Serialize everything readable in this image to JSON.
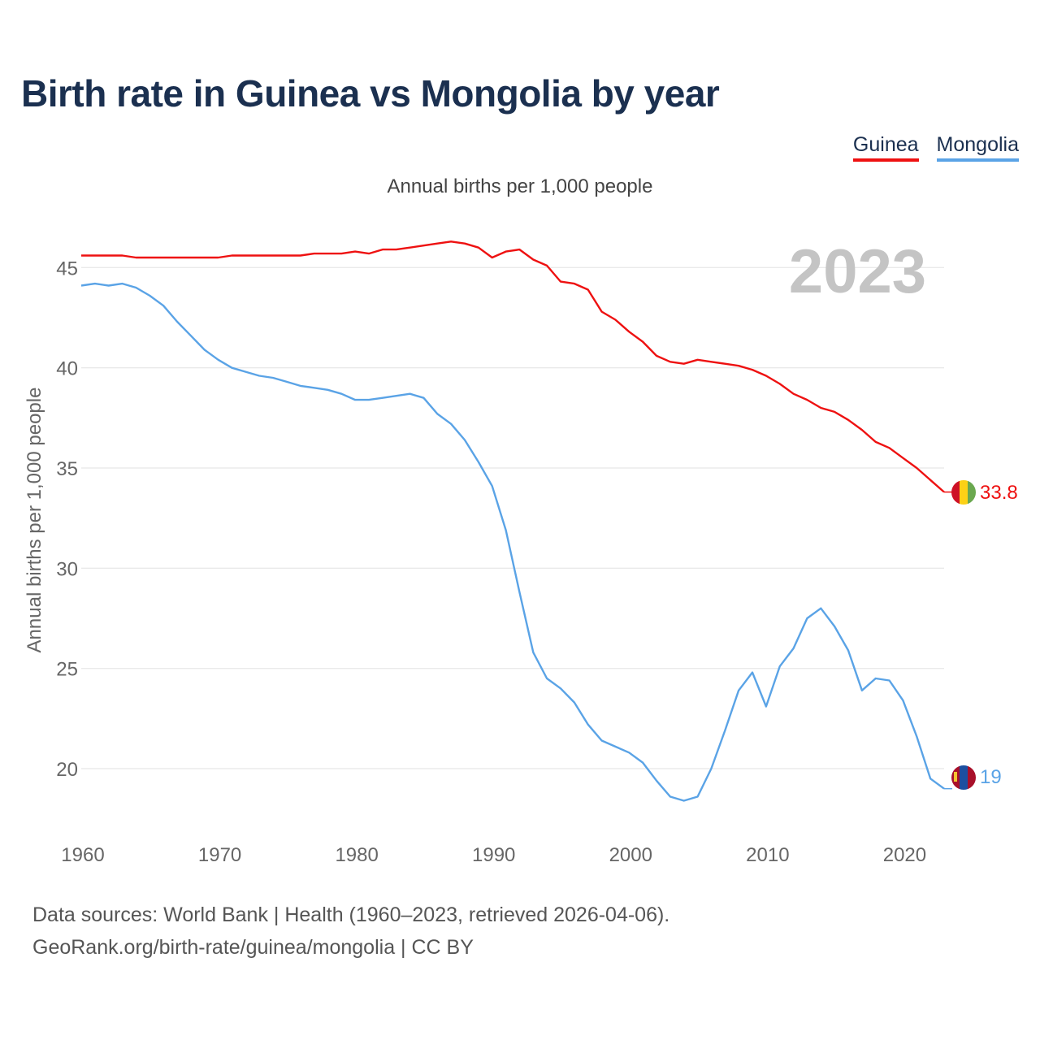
{
  "title": "Birth rate in Guinea vs Mongolia by year",
  "subtitle": "Annual births per 1,000 people",
  "year_watermark": "2023",
  "source_line1": "Data sources: World Bank | Health (1960–2023, retrieved 2026-04-06).",
  "source_line2": "GeoRank.org/birth-rate/guinea/mongolia | CC BY",
  "colors": {
    "guinea": "#ee1111",
    "mongolia": "#5aa3e6",
    "grid": "#e6e6e6",
    "axis_text": "#666666",
    "watermark": "#c4c4c4"
  },
  "chart_data": {
    "type": "line",
    "title": "Birth rate in Guinea vs Mongolia by year",
    "xlabel": "",
    "ylabel": "Annual births per 1,000 people",
    "xlim": [
      1960,
      2023
    ],
    "ylim": [
      17,
      47
    ],
    "x_ticks": [
      1960,
      1970,
      1980,
      1990,
      2000,
      2010,
      2020
    ],
    "y_ticks": [
      20,
      25,
      30,
      35,
      40,
      45
    ],
    "grid": true,
    "legend": "top-right",
    "x": [
      1960,
      1961,
      1962,
      1963,
      1964,
      1965,
      1966,
      1967,
      1968,
      1969,
      1970,
      1971,
      1972,
      1973,
      1974,
      1975,
      1976,
      1977,
      1978,
      1979,
      1980,
      1981,
      1982,
      1983,
      1984,
      1985,
      1986,
      1987,
      1988,
      1989,
      1990,
      1991,
      1992,
      1993,
      1994,
      1995,
      1996,
      1997,
      1998,
      1999,
      2000,
      2001,
      2002,
      2003,
      2004,
      2005,
      2006,
      2007,
      2008,
      2009,
      2010,
      2011,
      2012,
      2013,
      2014,
      2015,
      2016,
      2017,
      2018,
      2019,
      2020,
      2021,
      2022,
      2023
    ],
    "series": [
      {
        "name": "Guinea",
        "color": "#ee1111",
        "end_label": "33.8",
        "values": [
          45.6,
          45.6,
          45.6,
          45.6,
          45.5,
          45.5,
          45.5,
          45.5,
          45.5,
          45.5,
          45.5,
          45.6,
          45.6,
          45.6,
          45.6,
          45.6,
          45.6,
          45.7,
          45.7,
          45.7,
          45.8,
          45.7,
          45.9,
          45.9,
          46.0,
          46.1,
          46.2,
          46.3,
          46.2,
          46.0,
          45.5,
          45.8,
          45.9,
          45.4,
          45.1,
          44.3,
          44.2,
          43.9,
          42.8,
          42.4,
          41.8,
          41.3,
          40.6,
          40.3,
          40.2,
          40.4,
          40.3,
          40.2,
          40.1,
          39.9,
          39.6,
          39.2,
          38.7,
          38.4,
          38.0,
          37.8,
          37.4,
          36.9,
          36.3,
          36.0,
          35.5,
          35.0,
          34.4,
          33.8
        ]
      },
      {
        "name": "Mongolia",
        "color": "#5aa3e6",
        "end_label": "19",
        "values": [
          44.1,
          44.2,
          44.1,
          44.2,
          44.0,
          43.6,
          43.1,
          42.3,
          41.6,
          40.9,
          40.4,
          40.0,
          39.8,
          39.6,
          39.5,
          39.3,
          39.1,
          39.0,
          38.9,
          38.7,
          38.4,
          38.4,
          38.5,
          38.6,
          38.7,
          38.5,
          37.7,
          37.2,
          36.4,
          35.3,
          34.1,
          31.9,
          28.8,
          25.8,
          24.5,
          24.0,
          23.3,
          22.2,
          21.4,
          21.1,
          20.8,
          20.3,
          19.4,
          18.6,
          18.4,
          18.6,
          20.0,
          21.9,
          23.9,
          24.8,
          23.1,
          25.1,
          26.0,
          27.5,
          28.0,
          27.1,
          25.9,
          23.9,
          24.5,
          24.4,
          23.4,
          21.6,
          19.5,
          19.0
        ]
      }
    ]
  }
}
